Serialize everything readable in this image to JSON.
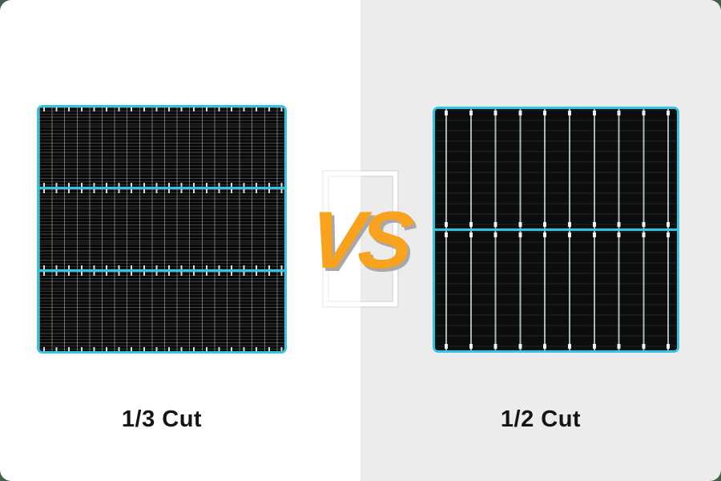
{
  "comparison": {
    "vs_label": "VS",
    "left_panel": {
      "label": "1/3 Cut",
      "sections": 3,
      "cut_type": "one-third-cut solar panel"
    },
    "right_panel": {
      "label": "1/2 Cut",
      "sections": 2,
      "cut_type": "half-cut solar panel"
    }
  },
  "colors": {
    "panel_border_cyan": "#31C4E3",
    "vs_orange": "#F9A21D",
    "vs_shadow_gray": "#A8A8A8",
    "left_background": "#FFFFFF",
    "right_background": "#ECECEC",
    "outer_corner_green": "#41604C",
    "panel_cell_black": "#0B0B0C",
    "caption_black": "#141414"
  }
}
